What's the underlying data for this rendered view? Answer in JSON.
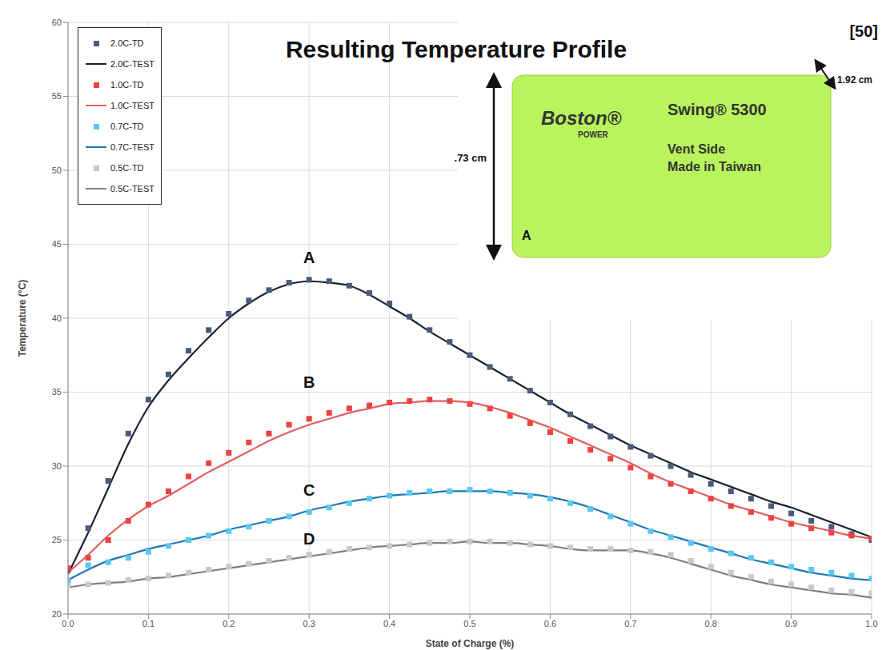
{
  "chart_data": {
    "type": "line",
    "title": "Resulting Temperature Profile",
    "citation": "[50]",
    "x_label": "State of Charge (%)",
    "y_label": "Temperature (°C)",
    "xlim": [
      0,
      1
    ],
    "ylim": [
      20,
      60
    ],
    "xticks": [
      {
        "value": 0,
        "label": "0.0"
      },
      0.1,
      0.2,
      0.3,
      0.4,
      0.5,
      0.6,
      0.7,
      0.8,
      0.9,
      {
        "value": 1,
        "label": "1.0"
      }
    ],
    "yticks": [
      20,
      25,
      30,
      35,
      40,
      45,
      50,
      55,
      60
    ],
    "grid": true,
    "legend": "top-left",
    "x": [
      0,
      0.025,
      0.05,
      0.075,
      0.1,
      0.125,
      0.15,
      0.175,
      0.2,
      0.225,
      0.25,
      0.275,
      0.3,
      0.325,
      0.35,
      0.375,
      0.4,
      0.425,
      0.45,
      0.475,
      0.5,
      0.525,
      0.55,
      0.575,
      0.6,
      0.625,
      0.65,
      0.675,
      0.7,
      0.725,
      0.75,
      0.775,
      0.8,
      0.825,
      0.85,
      0.875,
      0.9,
      0.925,
      0.95,
      0.975,
      1.0
    ],
    "series": [
      {
        "name": "2.0C-TD",
        "type": "scatter",
        "marker": "square",
        "color": "#4a5a7a",
        "values": [
          23.0,
          25.8,
          29.0,
          32.2,
          34.5,
          36.2,
          37.8,
          39.2,
          40.3,
          41.2,
          41.9,
          42.4,
          42.6,
          42.5,
          42.2,
          41.7,
          41.0,
          40.1,
          39.2,
          38.4,
          37.5,
          36.7,
          35.9,
          35.1,
          34.3,
          33.5,
          32.7,
          32.0,
          31.3,
          30.7,
          30.0,
          29.4,
          28.8,
          28.3,
          27.8,
          27.3,
          26.8,
          26.3,
          25.9,
          25.4,
          25.0
        ]
      },
      {
        "name": "2.0C-TEST",
        "type": "line",
        "line_style": "solid",
        "color": "#1a2233",
        "values": [
          22.7,
          25.5,
          28.5,
          31.5,
          34.0,
          35.8,
          37.3,
          38.7,
          40.0,
          41.0,
          41.8,
          42.3,
          42.5,
          42.4,
          42.2,
          41.6,
          40.8,
          40.0,
          39.1,
          38.3,
          37.5,
          36.7,
          35.9,
          35.1,
          34.3,
          33.5,
          32.8,
          32.1,
          31.4,
          30.8,
          30.2,
          29.6,
          29.1,
          28.6,
          28.1,
          27.6,
          27.2,
          26.7,
          26.2,
          25.7,
          25.2
        ]
      },
      {
        "name": "1.0C-TD",
        "type": "scatter",
        "marker": "square",
        "color": "#f04040",
        "values": [
          23.1,
          23.8,
          25.0,
          26.3,
          27.4,
          28.3,
          29.3,
          30.2,
          30.9,
          31.6,
          32.2,
          32.8,
          33.2,
          33.6,
          33.9,
          34.1,
          34.3,
          34.4,
          34.5,
          34.4,
          34.2,
          33.9,
          33.4,
          32.9,
          32.3,
          31.7,
          31.1,
          30.5,
          29.9,
          29.3,
          28.8,
          28.3,
          27.8,
          27.3,
          26.9,
          26.5,
          26.1,
          25.8,
          25.5,
          25.3,
          25.1
        ]
      },
      {
        "name": "1.0C-TEST",
        "type": "line",
        "line_style": "solid",
        "color": "#e06060",
        "values": [
          22.8,
          24.0,
          25.3,
          26.4,
          27.3,
          28.0,
          28.8,
          29.6,
          30.3,
          31.0,
          31.7,
          32.3,
          32.8,
          33.2,
          33.6,
          33.9,
          34.2,
          34.3,
          34.4,
          34.4,
          34.3,
          34.0,
          33.6,
          33.1,
          32.6,
          32.0,
          31.4,
          30.8,
          30.2,
          29.5,
          28.9,
          28.4,
          27.9,
          27.4,
          27.0,
          26.6,
          26.2,
          25.9,
          25.6,
          25.3,
          25.1
        ]
      },
      {
        "name": "0.7C-TD",
        "type": "scatter",
        "marker": "square",
        "color": "#5bc8f0",
        "values": [
          22.2,
          23.3,
          23.5,
          23.8,
          24.2,
          24.6,
          25.0,
          25.3,
          25.6,
          25.9,
          26.3,
          26.6,
          26.9,
          27.2,
          27.5,
          27.8,
          28.0,
          28.2,
          28.3,
          28.3,
          28.4,
          28.3,
          28.2,
          28.0,
          27.8,
          27.5,
          27.1,
          26.6,
          26.1,
          25.6,
          25.2,
          24.8,
          24.4,
          24.1,
          23.8,
          23.5,
          23.2,
          23.0,
          22.8,
          22.6,
          22.4
        ]
      },
      {
        "name": "0.7C-TEST",
        "type": "line",
        "line_style": "solid",
        "color": "#1e78b4",
        "values": [
          22.3,
          23.0,
          23.6,
          24.0,
          24.4,
          24.7,
          25.0,
          25.3,
          25.7,
          26.0,
          26.3,
          26.6,
          27.0,
          27.3,
          27.6,
          27.8,
          28.0,
          28.1,
          28.2,
          28.3,
          28.3,
          28.3,
          28.2,
          28.1,
          27.9,
          27.6,
          27.2,
          26.7,
          26.2,
          25.7,
          25.3,
          24.9,
          24.5,
          24.1,
          23.7,
          23.4,
          23.1,
          22.8,
          22.6,
          22.4,
          22.3
        ]
      },
      {
        "name": "0.5C-TD",
        "type": "scatter",
        "marker": "square",
        "color": "#c8c8c8",
        "values": [
          21.9,
          22.0,
          22.1,
          22.3,
          22.4,
          22.6,
          22.8,
          23.0,
          23.2,
          23.4,
          23.6,
          23.8,
          24.0,
          24.2,
          24.4,
          24.5,
          24.6,
          24.7,
          24.8,
          24.9,
          24.9,
          24.9,
          24.8,
          24.7,
          24.6,
          24.5,
          24.4,
          24.4,
          24.3,
          24.2,
          24.0,
          23.6,
          23.2,
          22.8,
          22.5,
          22.2,
          22.0,
          21.8,
          21.6,
          21.5,
          21.4
        ]
      },
      {
        "name": "0.5C-TEST",
        "type": "line",
        "line_style": "solid",
        "color": "#7f7f7f",
        "values": [
          21.8,
          22.0,
          22.1,
          22.2,
          22.4,
          22.5,
          22.7,
          22.9,
          23.1,
          23.3,
          23.5,
          23.7,
          23.9,
          24.1,
          24.3,
          24.5,
          24.6,
          24.7,
          24.8,
          24.8,
          24.9,
          24.8,
          24.8,
          24.7,
          24.6,
          24.4,
          24.3,
          24.3,
          24.3,
          24.1,
          23.8,
          23.4,
          23.0,
          22.6,
          22.3,
          22.0,
          21.8,
          21.6,
          21.4,
          21.3,
          21.1
        ]
      }
    ],
    "annotations": [
      {
        "text": "A",
        "x": 0.3,
        "y": 44.1
      },
      {
        "text": "B",
        "x": 0.3,
        "y": 35.7
      },
      {
        "text": "C",
        "x": 0.3,
        "y": 28.4
      },
      {
        "text": "D",
        "x": 0.3,
        "y": 25.1
      }
    ],
    "inset": {
      "brand": "Boston®",
      "brand_sub": "POWER",
      "model": "Swing® 5300",
      "lines": [
        "Vent Side",
        "Made in Taiwan"
      ],
      "height_label": ".73 cm",
      "depth_label": "1.92 cm",
      "side_label": "A"
    }
  }
}
